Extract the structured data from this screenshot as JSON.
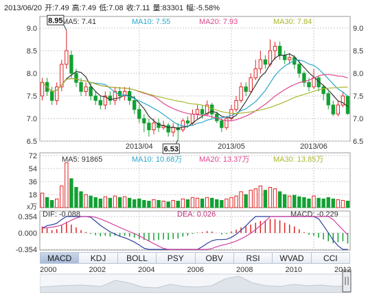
{
  "header": {
    "date": "2013/06/20",
    "open": "开:7.49",
    "high": "高:7.49",
    "low": "低:7.08",
    "close": "收:7.11",
    "volume": "量:83301",
    "change": "幅:-5.58%"
  },
  "price_panel": {
    "ma_legend": [
      {
        "label": "MA5: 7.41",
        "color": "#333333"
      },
      {
        "label": "MA10: 7.55",
        "color": "#2aa7c9"
      },
      {
        "label": "MA20: 7.93",
        "color": "#e0458c"
      },
      {
        "label": "MA30: 7.84",
        "color": "#a8b62c"
      }
    ],
    "y_ticks": [
      "9.0",
      "8.5",
      "8.0",
      "7.5",
      "7.0",
      "6.5"
    ],
    "x_ticks": [
      "2013/04",
      "2013/05",
      "2013/06"
    ],
    "high_marker": "8.95",
    "low_marker": "6.53"
  },
  "volume_panel": {
    "ma_legend": [
      {
        "label": "MA5: 91865",
        "color": "#333333"
      },
      {
        "label": "MA10: 10.68万",
        "color": "#2aa7c9"
      },
      {
        "label": "MA20: 13.37万",
        "color": "#e0458c"
      },
      {
        "label": "MA30: 13.85万",
        "color": "#a8b62c"
      }
    ],
    "y_ticks": [
      "72",
      "54",
      "36",
      "18"
    ],
    "unit": "x万"
  },
  "macd_panel": {
    "dif": "DIF: -0.088",
    "dea": "DEA: 0.026",
    "macd": "MACD: -0.229",
    "y_ticks": [
      "0.354",
      "0.000",
      "-0.354"
    ]
  },
  "tabs": [
    "MACD",
    "KDJ",
    "BOLL",
    "PSY",
    "OBV",
    "RSI",
    "WVAD",
    "CCI"
  ],
  "active_tab": "MACD",
  "timeline_years": [
    "2000",
    "2002",
    "2004",
    "2006",
    "2008",
    "2010",
    "2012"
  ],
  "colors": {
    "up": "#e02020",
    "down": "#12a033",
    "grid": "#c8c8c8",
    "axis": "#888888"
  },
  "chart_data": [
    {
      "type": "candlestick",
      "ylim": [
        6.5,
        9.0
      ],
      "x_ticks": [
        "2013/04",
        "2013/05",
        "2013/06"
      ],
      "candles": [
        [
          7.5,
          7.8,
          7.9,
          7.4
        ],
        [
          7.8,
          7.6,
          7.9,
          7.5
        ],
        [
          7.6,
          7.4,
          7.7,
          7.3
        ],
        [
          7.4,
          7.7,
          7.8,
          7.3
        ],
        [
          7.7,
          8.2,
          8.3,
          7.6
        ],
        [
          8.2,
          8.5,
          8.95,
          8.1
        ],
        [
          8.4,
          8.0,
          8.5,
          7.9
        ],
        [
          8.0,
          7.8,
          8.1,
          7.7
        ],
        [
          7.8,
          7.6,
          7.9,
          7.5
        ],
        [
          7.6,
          7.7,
          7.8,
          7.5
        ],
        [
          7.7,
          7.5,
          7.8,
          7.4
        ],
        [
          7.5,
          7.4,
          7.6,
          7.3
        ],
        [
          7.4,
          7.3,
          7.5,
          7.2
        ],
        [
          7.3,
          7.5,
          7.6,
          7.2
        ],
        [
          7.5,
          7.4,
          7.6,
          7.3
        ],
        [
          7.4,
          7.6,
          7.7,
          7.3
        ],
        [
          7.6,
          7.5,
          7.7,
          7.4
        ],
        [
          7.5,
          7.6,
          7.7,
          7.4
        ],
        [
          7.6,
          7.4,
          7.7,
          7.3
        ],
        [
          7.4,
          7.2,
          7.5,
          7.1
        ],
        [
          7.2,
          7.0,
          7.3,
          6.9
        ],
        [
          7.0,
          6.9,
          7.1,
          6.7
        ],
        [
          6.9,
          6.75,
          7.0,
          6.6
        ],
        [
          6.75,
          6.9,
          7.0,
          6.65
        ],
        [
          6.9,
          6.8,
          7.0,
          6.7
        ],
        [
          6.8,
          6.85,
          6.95,
          6.75
        ],
        [
          6.85,
          6.7,
          6.9,
          6.6
        ],
        [
          6.7,
          6.8,
          6.9,
          6.6
        ],
        [
          6.8,
          6.75,
          6.9,
          6.53
        ],
        [
          6.75,
          6.95,
          7.0,
          6.7
        ],
        [
          6.95,
          6.9,
          7.05,
          6.8
        ],
        [
          6.9,
          7.1,
          7.2,
          6.85
        ],
        [
          7.1,
          7.2,
          7.3,
          7.0
        ],
        [
          7.2,
          7.1,
          7.3,
          7.0
        ],
        [
          7.1,
          7.3,
          7.4,
          7.05
        ],
        [
          7.3,
          7.1,
          7.35,
          7.0
        ],
        [
          7.1,
          6.95,
          7.15,
          6.9
        ],
        [
          6.95,
          6.8,
          7.0,
          6.7
        ],
        [
          6.8,
          7.0,
          7.05,
          6.75
        ],
        [
          7.0,
          7.2,
          7.3,
          6.95
        ],
        [
          7.2,
          7.4,
          7.5,
          7.15
        ],
        [
          7.4,
          7.7,
          7.8,
          7.35
        ],
        [
          7.7,
          7.6,
          7.8,
          7.5
        ],
        [
          7.6,
          7.9,
          8.0,
          7.55
        ],
        [
          7.9,
          8.1,
          8.3,
          7.85
        ],
        [
          8.1,
          8.3,
          8.5,
          8.0
        ],
        [
          8.3,
          8.2,
          8.4,
          8.1
        ],
        [
          8.2,
          8.5,
          8.75,
          8.15
        ],
        [
          8.5,
          8.6,
          8.7,
          8.3
        ],
        [
          8.6,
          8.4,
          8.7,
          8.3
        ],
        [
          8.4,
          8.3,
          8.5,
          8.2
        ],
        [
          8.3,
          8.35,
          8.45,
          8.2
        ],
        [
          8.35,
          8.2,
          8.4,
          8.1
        ],
        [
          8.2,
          8.0,
          8.3,
          7.9
        ],
        [
          8.0,
          7.8,
          8.05,
          7.7
        ],
        [
          7.8,
          7.7,
          7.9,
          7.6
        ],
        [
          7.7,
          7.9,
          8.1,
          7.65
        ],
        [
          7.9,
          7.7,
          7.95,
          7.6
        ],
        [
          7.7,
          7.55,
          7.75,
          7.4
        ],
        [
          7.55,
          7.3,
          7.6,
          7.2
        ],
        [
          7.3,
          7.1,
          7.4,
          7.05
        ],
        [
          7.1,
          7.3,
          7.4,
          7.05
        ],
        [
          7.3,
          7.5,
          7.6,
          7.25
        ],
        [
          7.49,
          7.11,
          7.49,
          7.08
        ]
      ]
    },
    {
      "type": "bar",
      "title": "volume",
      "ylim": [
        0,
        72
      ],
      "values": [
        20,
        14,
        10,
        12,
        30,
        62,
        40,
        28,
        22,
        18,
        16,
        14,
        12,
        15,
        13,
        16,
        14,
        15,
        13,
        11,
        12,
        10,
        9,
        11,
        10,
        9,
        8,
        10,
        9,
        12,
        11,
        14,
        13,
        12,
        14,
        13,
        11,
        10,
        12,
        14,
        16,
        22,
        18,
        24,
        26,
        30,
        24,
        28,
        26,
        22,
        18,
        16,
        17,
        15,
        14,
        12,
        16,
        13,
        12,
        14,
        12,
        11,
        10,
        9
      ]
    },
    {
      "type": "bar",
      "title": "MACD",
      "ylim": [
        -0.354,
        0.354
      ],
      "values": [
        0.14,
        0.1,
        0.06,
        0.08,
        0.16,
        0.24,
        0.18,
        0.12,
        0.06,
        0.02,
        -0.02,
        -0.05,
        -0.07,
        -0.06,
        -0.08,
        -0.06,
        -0.07,
        -0.06,
        -0.08,
        -0.1,
        -0.13,
        -0.15,
        -0.17,
        -0.16,
        -0.15,
        -0.14,
        -0.15,
        -0.13,
        -0.12,
        -0.08,
        -0.06,
        -0.02,
        0.01,
        0.02,
        0.04,
        0.03,
        0.0,
        -0.03,
        -0.02,
        0.03,
        0.07,
        0.12,
        0.14,
        0.18,
        0.22,
        0.26,
        0.27,
        0.3,
        0.3,
        0.27,
        0.22,
        0.18,
        0.14,
        0.08,
        0.02,
        -0.04,
        -0.06,
        -0.1,
        -0.14,
        -0.18,
        -0.22,
        -0.2,
        -0.18,
        -0.229
      ]
    }
  ]
}
